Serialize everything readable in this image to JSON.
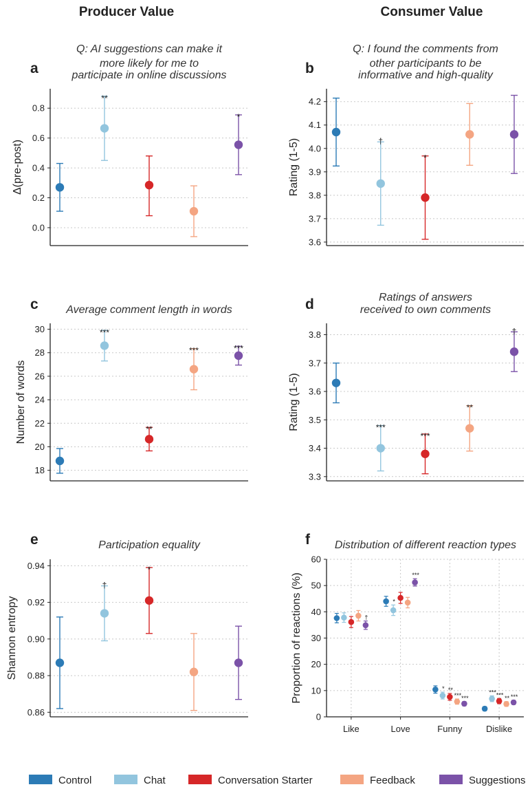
{
  "column_titles": {
    "left": "Producer Value",
    "right": "Consumer Value"
  },
  "colors": {
    "Control": "#2c7bb6",
    "Chat": "#92c5de",
    "Conversation Starter": "#d62728",
    "Feedback": "#f4a582",
    "Suggestions": "#7b52a8"
  },
  "legend": [
    "Control",
    "Chat",
    "Conversation Starter",
    "Feedback",
    "Suggestions"
  ],
  "chart_data": [
    {
      "panel": "a",
      "type": "scatter",
      "title": "Q: AI suggestions can make it more likely for me to participate in online discussions",
      "ylabel": "Δ(pre-post)",
      "xlabel": "",
      "ylim": [
        -0.12,
        0.93
      ],
      "yticks": [
        0.0,
        0.2,
        0.4,
        0.6,
        0.8
      ],
      "ytick_labels": [
        "0.0",
        "0.2",
        "0.4",
        "0.6",
        "0.8"
      ],
      "grid": true,
      "series": [
        {
          "name": "Control",
          "value": 0.27,
          "low": 0.11,
          "high": 0.43,
          "sig": ""
        },
        {
          "name": "Chat",
          "value": 0.665,
          "low": 0.45,
          "high": 0.88,
          "sig": "**"
        },
        {
          "name": "Conversation Starter",
          "value": 0.285,
          "low": 0.08,
          "high": 0.48,
          "sig": ""
        },
        {
          "name": "Feedback",
          "value": 0.11,
          "low": -0.06,
          "high": 0.28,
          "sig": ""
        },
        {
          "name": "Suggestions",
          "value": 0.555,
          "low": 0.355,
          "high": 0.755,
          "sig": "*"
        }
      ]
    },
    {
      "panel": "b",
      "type": "scatter",
      "title": "Q: I found the comments from other participants to be informative and high-quality",
      "ylabel": "Rating (1-5)",
      "xlabel": "",
      "ylim": [
        3.585,
        4.255
      ],
      "yticks": [
        3.6,
        3.7,
        3.8,
        3.9,
        4.0,
        4.1,
        4.2
      ],
      "ytick_labels": [
        "3.6",
        "3.7",
        "3.8",
        "3.9",
        "4.0",
        "4.1",
        "4.2"
      ],
      "grid": true,
      "series": [
        {
          "name": "Control",
          "value": 4.07,
          "low": 3.925,
          "high": 4.215,
          "sig": ""
        },
        {
          "name": "Chat",
          "value": 3.85,
          "low": 3.672,
          "high": 4.028,
          "sig": "†"
        },
        {
          "name": "Conversation Starter",
          "value": 3.79,
          "low": 3.612,
          "high": 3.968,
          "sig": "*"
        },
        {
          "name": "Feedback",
          "value": 4.06,
          "low": 3.928,
          "high": 4.192,
          "sig": ""
        },
        {
          "name": "Suggestions",
          "value": 4.06,
          "low": 3.893,
          "high": 4.227,
          "sig": ""
        }
      ]
    },
    {
      "panel": "c",
      "type": "scatter",
      "title": "Average comment length in words",
      "ylabel": "Number of words",
      "xlabel": "",
      "ylim": [
        17.1,
        30.5
      ],
      "yticks": [
        18,
        20,
        22,
        24,
        26,
        28,
        30
      ],
      "ytick_labels": [
        "18",
        "20",
        "22",
        "24",
        "26",
        "28",
        "30"
      ],
      "grid": true,
      "series": [
        {
          "name": "Control",
          "value": 18.8,
          "low": 17.75,
          "high": 19.85,
          "sig": ""
        },
        {
          "name": "Chat",
          "value": 28.6,
          "low": 27.3,
          "high": 29.9,
          "sig": "***"
        },
        {
          "name": "Conversation Starter",
          "value": 20.65,
          "low": 19.65,
          "high": 21.65,
          "sig": "**"
        },
        {
          "name": "Feedback",
          "value": 26.6,
          "low": 24.85,
          "high": 28.35,
          "sig": "***"
        },
        {
          "name": "Suggestions",
          "value": 27.75,
          "low": 26.95,
          "high": 28.55,
          "sig": "***"
        }
      ]
    },
    {
      "panel": "d",
      "type": "scatter",
      "title": "Ratings of answers received to own comments",
      "ylabel": "Rating (1-5)",
      "xlabel": "",
      "ylim": [
        3.285,
        3.84
      ],
      "yticks": [
        3.3,
        3.4,
        3.5,
        3.6,
        3.7,
        3.8
      ],
      "ytick_labels": [
        "3.3",
        "3.4",
        "3.5",
        "3.6",
        "3.7",
        "3.8"
      ],
      "grid": true,
      "series": [
        {
          "name": "Control",
          "value": 3.63,
          "low": 3.56,
          "high": 3.7,
          "sig": ""
        },
        {
          "name": "Chat",
          "value": 3.4,
          "low": 3.32,
          "high": 3.48,
          "sig": "***"
        },
        {
          "name": "Conversation Starter",
          "value": 3.38,
          "low": 3.31,
          "high": 3.45,
          "sig": "***"
        },
        {
          "name": "Feedback",
          "value": 3.47,
          "low": 3.39,
          "high": 3.55,
          "sig": "**"
        },
        {
          "name": "Suggestions",
          "value": 3.74,
          "low": 3.67,
          "high": 3.81,
          "sig": "†"
        }
      ]
    },
    {
      "panel": "e",
      "type": "scatter",
      "title": "Participation equality",
      "ylabel": "Shannon entropy",
      "xlabel": "",
      "ylim": [
        0.8575,
        0.9435
      ],
      "yticks": [
        0.86,
        0.88,
        0.9,
        0.92,
        0.94
      ],
      "ytick_labels": [
        "0.86",
        "0.88",
        "0.90",
        "0.92",
        "0.94"
      ],
      "grid": true,
      "series": [
        {
          "name": "Control",
          "value": 0.887,
          "low": 0.862,
          "high": 0.912,
          "sig": ""
        },
        {
          "name": "Chat",
          "value": 0.914,
          "low": 0.899,
          "high": 0.929,
          "sig": "†"
        },
        {
          "name": "Conversation Starter",
          "value": 0.921,
          "low": 0.903,
          "high": 0.939,
          "sig": "*"
        },
        {
          "name": "Feedback",
          "value": 0.882,
          "low": 0.861,
          "high": 0.903,
          "sig": ""
        },
        {
          "name": "Suggestions",
          "value": 0.887,
          "low": 0.867,
          "high": 0.907,
          "sig": ""
        }
      ]
    },
    {
      "panel": "f",
      "type": "scatter",
      "title": "Distribution of different reaction types",
      "ylabel": "Proportion of reactions (%)",
      "xlabel": "",
      "ylim": [
        0,
        60
      ],
      "yticks": [
        0,
        10,
        20,
        30,
        40,
        50,
        60
      ],
      "ytick_labels": [
        "0",
        "10",
        "20",
        "30",
        "40",
        "50",
        "60"
      ],
      "categories": [
        "Like",
        "Love",
        "Funny",
        "Dislike"
      ],
      "grid": true,
      "series": [
        {
          "name": "Control",
          "values": [
            37.6,
            44.0,
            10.4,
            3.1
          ],
          "err": [
            1.8,
            1.9,
            1.4,
            0.8
          ],
          "sig": [
            "",
            "",
            "",
            ""
          ]
        },
        {
          "name": "Chat",
          "values": [
            37.8,
            40.6,
            8.1,
            6.9
          ],
          "err": [
            1.8,
            2.0,
            1.3,
            1.1
          ],
          "sig": [
            "",
            "*",
            "*",
            "***"
          ]
        },
        {
          "name": "Conversation Starter",
          "values": [
            36.1,
            45.3,
            7.6,
            6.0
          ],
          "err": [
            2.1,
            2.1,
            1.3,
            1.0
          ],
          "sig": [
            "",
            "",
            "**",
            "***"
          ]
        },
        {
          "name": "Feedback",
          "values": [
            38.5,
            43.5,
            5.8,
            4.9
          ],
          "err": [
            2.0,
            2.0,
            1.0,
            0.9
          ],
          "sig": [
            "",
            "",
            "***",
            "**"
          ]
        },
        {
          "name": "Suggestions",
          "values": [
            34.9,
            51.2,
            5.0,
            5.5
          ],
          "err": [
            1.6,
            1.4,
            0.8,
            0.8
          ],
          "sig": [
            "†",
            "***",
            "***",
            "***"
          ]
        }
      ]
    }
  ]
}
